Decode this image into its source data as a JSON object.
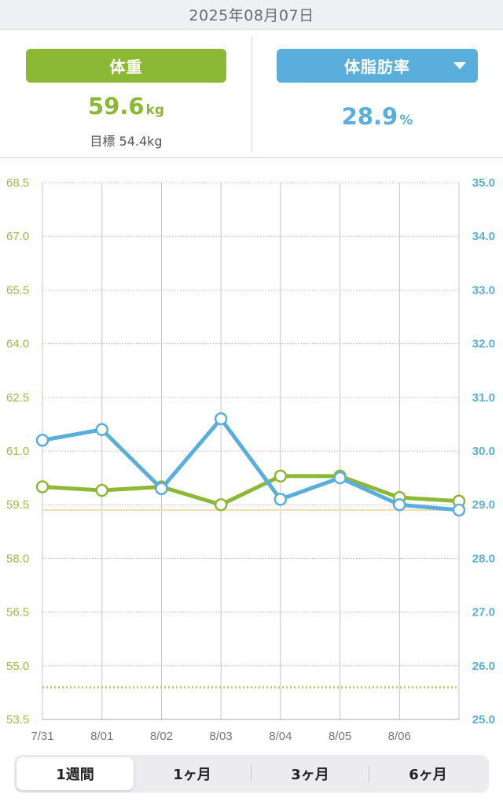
{
  "header": {
    "date": "2025年08月07日"
  },
  "weight": {
    "label": "体重",
    "value": "59.6",
    "unit": "kg",
    "goal": "目標 54.4kg"
  },
  "body_fat": {
    "label": "体脂肪率",
    "value": "28.9",
    "unit": "%"
  },
  "period_tabs": [
    {
      "label": "1週間",
      "active": true
    },
    {
      "label": "1ヶ月",
      "active": false
    },
    {
      "label": "3ヶ月",
      "active": false
    },
    {
      "label": "6ヶ月",
      "active": false
    }
  ],
  "colors": {
    "weight": "#8bb936",
    "fat": "#5aaedc",
    "fat_avg_line": "#f2dfb6"
  },
  "chart_data": {
    "type": "line",
    "x": [
      "7/31",
      "8/01",
      "8/02",
      "8/03",
      "8/04",
      "8/05",
      "8/06",
      ""
    ],
    "x_tick_labels": [
      "7/31",
      "8/01",
      "8/02",
      "8/03",
      "8/04",
      "8/05",
      "8/06"
    ],
    "y_left": {
      "ylim": [
        53.5,
        68.5
      ],
      "ticks": [
        "53.5",
        "55.0",
        "56.5",
        "58.0",
        "59.5",
        "61.0",
        "62.5",
        "64.0",
        "65.5",
        "67.0",
        "68.5"
      ]
    },
    "y_right": {
      "ylim": [
        25.0,
        35.0
      ],
      "ticks": [
        "25.0",
        "26.0",
        "27.0",
        "28.0",
        "29.0",
        "30.0",
        "31.0",
        "32.0",
        "33.0",
        "34.0",
        "35.0"
      ]
    },
    "series": [
      {
        "axis": "left",
        "color": "#8bb936",
        "values": [
          60.0,
          59.9,
          60.0,
          59.5,
          60.3,
          60.3,
          59.7,
          59.6
        ]
      },
      {
        "axis": "right",
        "color": "#5aaedc",
        "values": [
          30.2,
          30.4,
          29.3,
          30.6,
          29.1,
          29.5,
          29.0,
          28.9
        ]
      }
    ],
    "reference_lines": [
      {
        "axis": "left",
        "value": 54.4,
        "style": "dotted",
        "color": "#b5d36b"
      },
      {
        "axis": "right",
        "value": 28.9,
        "style": "solid",
        "color": "#f2dfb6"
      }
    ],
    "grid": true
  }
}
